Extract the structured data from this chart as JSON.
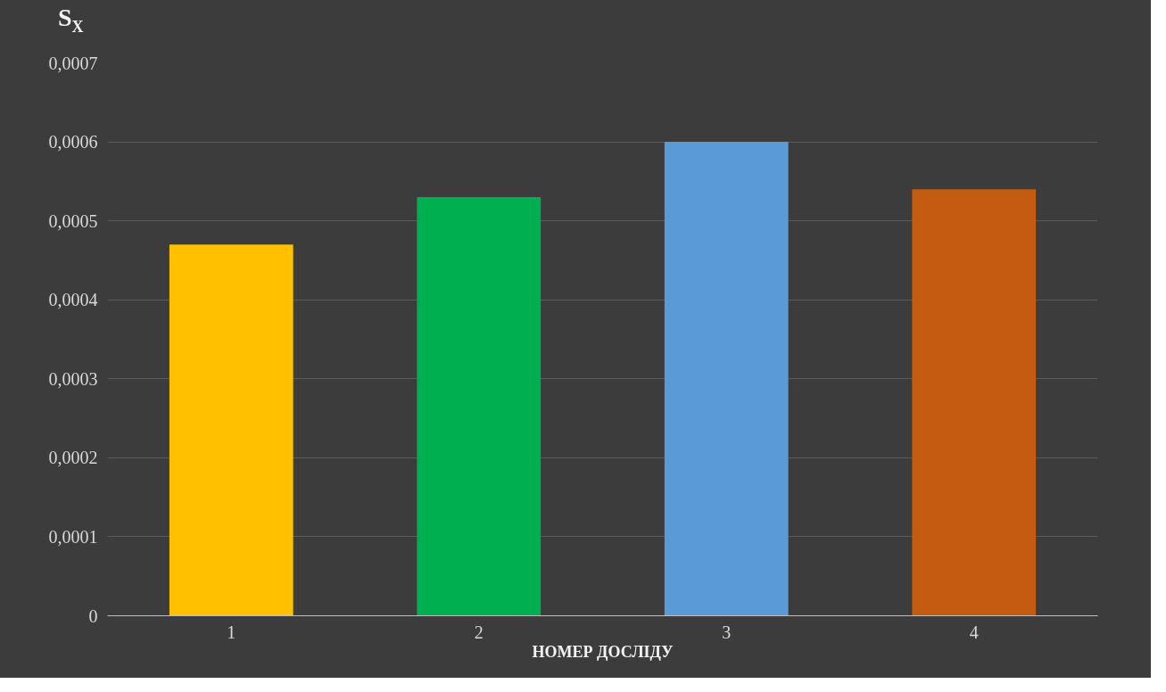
{
  "chart_data": {
    "type": "bar",
    "ylabel": "S$_{X}$",
    "xlabel": "НОМЕР ДОСЛІДУ",
    "categories": [
      "1",
      "2",
      "3",
      "4"
    ],
    "values": [
      0.00047,
      0.00053,
      0.0006,
      0.00054
    ],
    "colors": [
      "#ffc000",
      "#00b050",
      "#5b9bd5",
      "#c55a11"
    ],
    "ylim": [
      0,
      0.0007
    ],
    "yticks": [
      {
        "value": 0,
        "label": "0"
      },
      {
        "value": 0.0001,
        "label": "0,0001"
      },
      {
        "value": 0.0002,
        "label": "0,0002"
      },
      {
        "value": 0.0003,
        "label": "0,0003"
      },
      {
        "value": 0.0004,
        "label": "0,0004"
      },
      {
        "value": 0.0005,
        "label": "0,0005"
      },
      {
        "value": 0.0006,
        "label": "0,0006"
      },
      {
        "value": 0.0007,
        "label": "0,0007"
      }
    ],
    "grid": "y"
  }
}
